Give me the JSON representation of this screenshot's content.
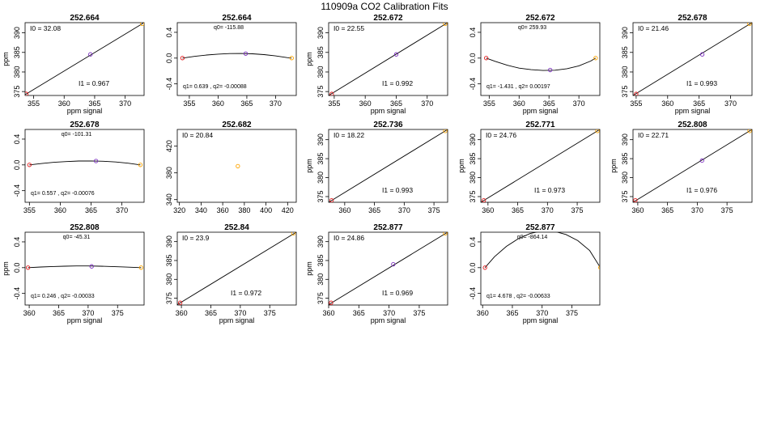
{
  "figure_title": "110909a   CO2 Calibration Fits",
  "chart_data": [
    {
      "type": "line",
      "title": "252.664",
      "xlabel": "ppm signal",
      "ylabel": "ppm",
      "xlim": [
        353.6,
        373.1
      ],
      "ylim": [
        374.0,
        392.6
      ],
      "xticks": [
        355,
        360,
        365,
        370
      ],
      "yticks": [
        375,
        380,
        385,
        390
      ],
      "fit": "linear",
      "points": [
        [
          353.8,
          374.4,
          "#e41a1c"
        ],
        [
          364.3,
          384.5,
          "#7b2fbf"
        ],
        [
          372.8,
          392.3,
          "#ffa500"
        ]
      ],
      "curve": [
        [
          353.6,
          374.2
        ],
        [
          373.1,
          392.6
        ]
      ],
      "annotations": [
        {
          "label": "I0 =  32.08",
          "pos": "top-left"
        },
        {
          "label": "I1 =  0.967",
          "pos": "bottom-right"
        }
      ]
    },
    {
      "type": "line",
      "title": "252.664",
      "xlabel": "",
      "ylabel": "",
      "xlim": [
        352.9,
        373.6
      ],
      "ylim": [
        -0.58,
        0.55
      ],
      "xticks": [
        355,
        360,
        365,
        370
      ],
      "yticks": [
        -0.4,
        0.0,
        0.4
      ],
      "ytick_labels": [
        "-0.4",
        "0.0",
        "0.4"
      ],
      "fit": "quadratic",
      "points": [
        [
          353.8,
          0.0,
          "#e41a1c"
        ],
        [
          364.8,
          0.07,
          "#7b2fbf"
        ],
        [
          372.8,
          0.0,
          "#ffa500"
        ]
      ],
      "curve": [
        [
          353.8,
          0.0
        ],
        [
          356.0,
          0.028
        ],
        [
          358.0,
          0.048
        ],
        [
          360.0,
          0.062
        ],
        [
          362.0,
          0.07
        ],
        [
          364.0,
          0.072
        ],
        [
          366.0,
          0.067
        ],
        [
          368.0,
          0.054
        ],
        [
          370.0,
          0.034
        ],
        [
          372.0,
          0.008
        ],
        [
          372.8,
          0.0
        ]
      ],
      "annotations": [
        {
          "label": "q0= -115.88",
          "pos": "top-center"
        },
        {
          "label": "q1= 0.639 , q2= -0.00088",
          "pos": "bottom-left"
        }
      ]
    },
    {
      "type": "line",
      "title": "252.672",
      "xlabel": "ppm signal",
      "ylabel": "ppm",
      "xlim": [
        354.1,
        373.3
      ],
      "ylim": [
        374.0,
        392.6
      ],
      "xticks": [
        355,
        360,
        365,
        370
      ],
      "yticks": [
        375,
        380,
        385,
        390
      ],
      "fit": "linear",
      "points": [
        [
          354.6,
          374.4,
          "#e41a1c"
        ],
        [
          365.0,
          384.5,
          "#7b2fbf"
        ],
        [
          372.9,
          392.3,
          "#ffa500"
        ]
      ],
      "curve": [
        [
          354.1,
          374.0
        ],
        [
          373.3,
          392.6
        ]
      ],
      "annotations": [
        {
          "label": "I0 =  22.55",
          "pos": "top-left"
        },
        {
          "label": "I1 =  0.992",
          "pos": "bottom-right"
        }
      ]
    },
    {
      "type": "line",
      "title": "252.672",
      "xlabel": "ppm signal",
      "ylabel": "",
      "xlim": [
        353.6,
        373.5
      ],
      "ylim": [
        -0.58,
        0.55
      ],
      "xticks": [
        355,
        360,
        365,
        370
      ],
      "yticks": [
        -0.4,
        0.0,
        0.4
      ],
      "ytick_labels": [
        "-0.4",
        "0.0",
        "0.4"
      ],
      "fit": "quadratic",
      "points": [
        [
          354.5,
          0.0,
          "#e41a1c"
        ],
        [
          365.2,
          -0.185,
          "#7b2fbf"
        ],
        [
          372.8,
          0.0,
          "#ffa500"
        ]
      ],
      "curve": [
        [
          354.5,
          0.0
        ],
        [
          356.0,
          -0.05
        ],
        [
          358.0,
          -0.11
        ],
        [
          360.0,
          -0.155
        ],
        [
          362.0,
          -0.18
        ],
        [
          364.0,
          -0.192
        ],
        [
          366.0,
          -0.188
        ],
        [
          368.0,
          -0.165
        ],
        [
          370.0,
          -0.12
        ],
        [
          372.0,
          -0.045
        ],
        [
          372.8,
          0.0
        ]
      ],
      "annotations": [
        {
          "label": "q0= 259.93",
          "pos": "top-center"
        },
        {
          "label": "q1= -1.431 , q2= 0.00197",
          "pos": "bottom-left"
        }
      ]
    },
    {
      "type": "line",
      "title": "252.678",
      "xlabel": "ppm signal",
      "ylabel": "",
      "xlim": [
        354.5,
        373.4
      ],
      "ylim": [
        374.0,
        392.6
      ],
      "xticks": [
        355,
        360,
        365,
        370
      ],
      "yticks": [
        375,
        380,
        385,
        390
      ],
      "fit": "linear",
      "points": [
        [
          355.0,
          374.4,
          "#e41a1c"
        ],
        [
          365.5,
          384.5,
          "#7b2fbf"
        ],
        [
          373.0,
          392.3,
          "#ffa500"
        ]
      ],
      "curve": [
        [
          354.5,
          374.0
        ],
        [
          373.4,
          392.6
        ]
      ],
      "annotations": [
        {
          "label": "I0 =  21.46",
          "pos": "top-left"
        },
        {
          "label": "I1 =  0.993",
          "pos": "bottom-right"
        }
      ]
    },
    {
      "type": "line",
      "title": "252.678",
      "xlabel": "",
      "ylabel": "",
      "xlim": [
        354.3,
        373.6
      ],
      "ylim": [
        -0.58,
        0.55
      ],
      "xticks": [
        355,
        360,
        365,
        370
      ],
      "yticks": [
        -0.4,
        0.0,
        0.4
      ],
      "ytick_labels": [
        "-0.4",
        "0.0",
        "0.4"
      ],
      "fit": "quadratic",
      "points": [
        [
          355.0,
          0.0,
          "#e41a1c"
        ],
        [
          365.8,
          0.06,
          "#7b2fbf"
        ],
        [
          373.0,
          0.0,
          "#ffa500"
        ]
      ],
      "curve": [
        [
          355.0,
          0.0
        ],
        [
          357.0,
          0.022
        ],
        [
          359.0,
          0.04
        ],
        [
          361.0,
          0.052
        ],
        [
          363.0,
          0.06
        ],
        [
          365.0,
          0.062
        ],
        [
          367.0,
          0.057
        ],
        [
          369.0,
          0.045
        ],
        [
          371.0,
          0.026
        ],
        [
          373.0,
          0.0
        ]
      ],
      "annotations": [
        {
          "label": "q0= -101.31",
          "pos": "top-center"
        },
        {
          "label": "q1= 0.557 , q2= -0.00076",
          "pos": "bottom-left"
        }
      ]
    },
    {
      "type": "scatter",
      "title": "252.682",
      "xlabel": "",
      "ylabel": "",
      "xlim": [
        318,
        428
      ],
      "ylim": [
        336,
        445
      ],
      "xticks": [
        320,
        340,
        360,
        380,
        400,
        420
      ],
      "yticks": [
        340,
        380,
        420
      ],
      "fit": "none",
      "points": [
        [
          374,
          390,
          "#ffa500"
        ]
      ],
      "curve": [],
      "annotations": [
        {
          "label": "I0 =  20.84",
          "pos": "top-left"
        }
      ]
    },
    {
      "type": "line",
      "title": "252.736",
      "xlabel": "",
      "ylabel": "ppm",
      "xlim": [
        357.3,
        377.3
      ],
      "ylim": [
        373.5,
        392.7
      ],
      "xticks": [
        360,
        365,
        370,
        375
      ],
      "yticks": [
        375,
        380,
        385,
        390
      ],
      "fit": "linear",
      "points": [
        [
          357.8,
          374.0,
          "#e41a1c"
        ],
        [
          376.9,
          392.3,
          "#ffa500"
        ]
      ],
      "curve": [
        [
          357.3,
          373.5
        ],
        [
          377.3,
          392.7
        ]
      ],
      "annotations": [
        {
          "label": "I0 =  18.22",
          "pos": "top-left"
        },
        {
          "label": "I1 =  0.993",
          "pos": "bottom-right"
        }
      ]
    },
    {
      "type": "line",
      "title": "252.771",
      "xlabel": "",
      "ylabel": "ppm",
      "xlim": [
        358.8,
        378.8
      ],
      "ylim": [
        373.5,
        392.7
      ],
      "xticks": [
        360,
        365,
        370,
        375
      ],
      "yticks": [
        375,
        380,
        385,
        390
      ],
      "fit": "linear",
      "points": [
        [
          359.3,
          374.0,
          "#e41a1c"
        ],
        [
          378.4,
          392.3,
          "#ffa500"
        ]
      ],
      "curve": [
        [
          358.8,
          373.5
        ],
        [
          378.8,
          392.7
        ]
      ],
      "annotations": [
        {
          "label": "I0 =  24.76",
          "pos": "top-left"
        },
        {
          "label": "I1 =  0.973",
          "pos": "bottom-right"
        }
      ]
    },
    {
      "type": "line",
      "title": "252.808",
      "xlabel": "",
      "ylabel": "ppm",
      "xlim": [
        359.2,
        379.2
      ],
      "ylim": [
        373.5,
        392.7
      ],
      "xticks": [
        360,
        365,
        370,
        375
      ],
      "yticks": [
        375,
        380,
        385,
        390
      ],
      "fit": "linear",
      "points": [
        [
          359.6,
          374.0,
          "#e41a1c"
        ],
        [
          370.8,
          384.5,
          "#7b2fbf"
        ],
        [
          378.8,
          392.3,
          "#ffa500"
        ]
      ],
      "curve": [
        [
          359.2,
          373.5
        ],
        [
          379.2,
          392.7
        ]
      ],
      "annotations": [
        {
          "label": "I0 =  22.71",
          "pos": "top-left"
        },
        {
          "label": "I1 =  0.976",
          "pos": "bottom-right"
        }
      ]
    },
    {
      "type": "line",
      "title": "252.808",
      "xlabel": "ppm signal",
      "ylabel": "ppm",
      "xlim": [
        359.3,
        379.5
      ],
      "ylim": [
        -0.58,
        0.55
      ],
      "xticks": [
        360,
        365,
        370,
        375
      ],
      "yticks": [
        -0.4,
        0.0,
        0.4
      ],
      "ytick_labels": [
        "-0.4",
        "0.0",
        "0.4"
      ],
      "fit": "quadratic",
      "points": [
        [
          359.8,
          0.0,
          "#e41a1c"
        ],
        [
          370.6,
          0.02,
          "#7b2fbf"
        ],
        [
          379.0,
          0.0,
          "#ffa500"
        ]
      ],
      "curve": [
        [
          359.8,
          0.0
        ],
        [
          362.0,
          0.01
        ],
        [
          364.0,
          0.018
        ],
        [
          366.0,
          0.023
        ],
        [
          368.0,
          0.026
        ],
        [
          370.0,
          0.026
        ],
        [
          372.0,
          0.023
        ],
        [
          374.0,
          0.018
        ],
        [
          376.0,
          0.011
        ],
        [
          379.0,
          0.0
        ]
      ],
      "annotations": [
        {
          "label": "q0= -45.31",
          "pos": "top-center"
        },
        {
          "label": "q1= 0.246 , q2= -0.00033",
          "pos": "bottom-left"
        }
      ]
    },
    {
      "type": "line",
      "title": "252.84",
      "xlabel": "ppm signal",
      "ylabel": "",
      "xlim": [
        359.3,
        379.5
      ],
      "ylim": [
        373.2,
        392.5
      ],
      "xticks": [
        360,
        365,
        370,
        375
      ],
      "yticks": [
        375,
        380,
        385,
        390
      ],
      "fit": "linear",
      "points": [
        [
          359.8,
          373.8,
          "#e41a1c"
        ],
        [
          379.0,
          392.2,
          "#ffa500"
        ]
      ],
      "curve": [
        [
          359.3,
          373.3
        ],
        [
          379.5,
          392.5
        ]
      ],
      "annotations": [
        {
          "label": "I0 =  23.9",
          "pos": "top-left"
        },
        {
          "label": "I1 =  0.972",
          "pos": "bottom-right"
        }
      ]
    },
    {
      "type": "line",
      "title": "252.877",
      "xlabel": "ppm signal",
      "ylabel": "ppm",
      "xlim": [
        360.0,
        379.7
      ],
      "ylim": [
        373.2,
        392.5
      ],
      "xticks": [
        360,
        365,
        370,
        375
      ],
      "yticks": [
        375,
        380,
        385,
        390
      ],
      "fit": "linear",
      "points": [
        [
          360.4,
          373.8,
          "#e41a1c"
        ],
        [
          370.7,
          384.0,
          "#7b2fbf"
        ],
        [
          379.3,
          392.2,
          "#ffa500"
        ]
      ],
      "curve": [
        [
          360.0,
          373.3
        ],
        [
          379.7,
          392.5
        ]
      ],
      "annotations": [
        {
          "label": "I0 =  24.86",
          "pos": "top-left"
        },
        {
          "label": "I1 =  0.969",
          "pos": "bottom-right"
        }
      ]
    },
    {
      "type": "line",
      "title": "252.877",
      "xlabel": "ppm signal",
      "ylabel": "",
      "xlim": [
        359.7,
        379.7
      ],
      "ylim": [
        -0.58,
        0.55
      ],
      "xticks": [
        360,
        365,
        370,
        375
      ],
      "yticks": [
        -0.4,
        0.0,
        0.4
      ],
      "ytick_labels": [
        "-0.4",
        "0.0",
        "0.4"
      ],
      "fit": "quadratic",
      "points": [
        [
          360.4,
          0.0,
          "#e41a1c"
        ],
        [
          379.8,
          0.0,
          "#ffa500"
        ]
      ],
      "curve": [
        [
          360.4,
          0.0
        ],
        [
          362.0,
          0.17
        ],
        [
          364.0,
          0.33
        ],
        [
          366.0,
          0.45
        ],
        [
          368.0,
          0.53
        ],
        [
          370.0,
          0.57
        ],
        [
          371.0,
          0.575
        ],
        [
          372.0,
          0.565
        ],
        [
          374.0,
          0.515
        ],
        [
          376.0,
          0.42
        ],
        [
          378.0,
          0.265
        ],
        [
          379.8,
          0.0
        ]
      ],
      "annotations": [
        {
          "label": "q0= -864.14",
          "pos": "top-center"
        },
        {
          "label": "q1= 4.678 , q2= -0.00633",
          "pos": "bottom-left"
        }
      ]
    }
  ]
}
